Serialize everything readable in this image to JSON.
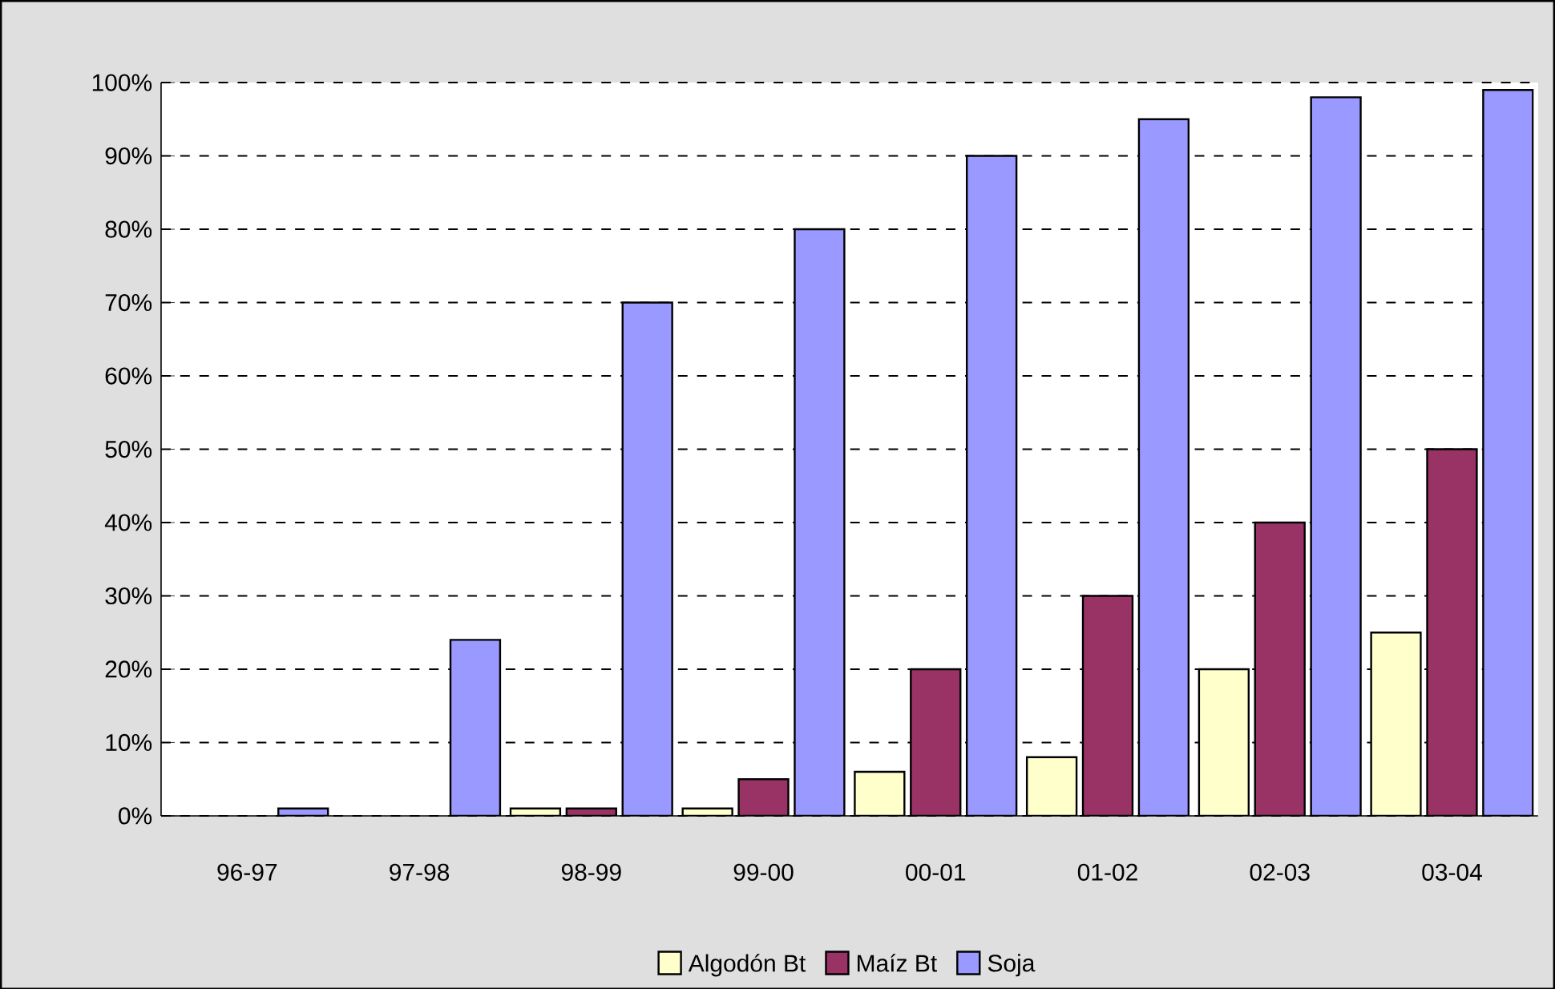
{
  "chart_data": {
    "type": "bar",
    "categories": [
      "96-97",
      "97-98",
      "98-99",
      "99-00",
      "00-01",
      "01-02",
      "02-03",
      "03-04"
    ],
    "series": [
      {
        "name": "Algodón Bt",
        "color": "#ffffcc",
        "values": [
          null,
          null,
          1,
          1,
          6,
          8,
          20,
          25
        ]
      },
      {
        "name": "Maíz Bt",
        "color": "#993366",
        "values": [
          null,
          null,
          1,
          5,
          20,
          30,
          40,
          50
        ]
      },
      {
        "name": "Soja",
        "color": "#9999ff",
        "values": [
          1,
          24,
          70,
          80,
          90,
          95,
          98,
          99
        ]
      }
    ],
    "ylim": [
      0,
      100
    ],
    "yticks": [
      {
        "value": 0,
        "label": "0%"
      },
      {
        "value": 10,
        "label": "10%"
      },
      {
        "value": 20,
        "label": "20%"
      },
      {
        "value": 30,
        "label": "30%"
      },
      {
        "value": 40,
        "label": "40%"
      },
      {
        "value": 50,
        "label": "50%"
      },
      {
        "value": 60,
        "label": "60%"
      },
      {
        "value": 70,
        "label": "70%"
      },
      {
        "value": 80,
        "label": "80%"
      },
      {
        "value": 90,
        "label": "90%"
      },
      {
        "value": 100,
        "label": "100%"
      }
    ],
    "grid": "y",
    "legend": "bottom"
  }
}
